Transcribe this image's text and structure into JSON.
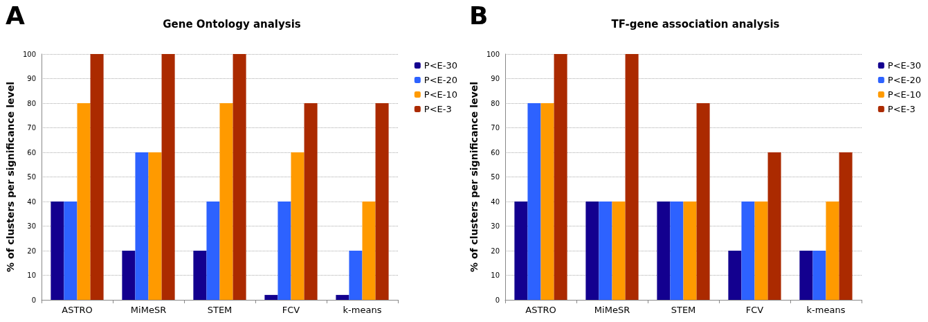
{
  "chart_data": [
    {
      "type": "bar",
      "title": "Gene Ontology analysis",
      "annotations": [
        "A"
      ],
      "ylabel": "% of clusters per significance level",
      "categories": [
        "ASTRO",
        "MiMeSR",
        "STEM",
        "FCV",
        "k-means"
      ],
      "series": [
        {
          "name": "P<E-30",
          "color": "#13008f",
          "values": [
            40,
            20,
            20,
            2,
            2
          ]
        },
        {
          "name": "P<E-20",
          "color": "#2d62ff",
          "values": [
            40,
            60,
            40,
            40,
            20
          ]
        },
        {
          "name": "P<E-10",
          "color": "#ff9a00",
          "values": [
            80,
            60,
            80,
            60,
            40
          ]
        },
        {
          "name": "P<E-3",
          "color": "#ab2a00",
          "values": [
            100,
            100,
            100,
            80,
            80
          ]
        }
      ],
      "ylim": [
        0,
        100
      ],
      "yticks": [
        0,
        10,
        20,
        30,
        40,
        50,
        60,
        70,
        80,
        90,
        100
      ],
      "grid": "y",
      "legend": "top right"
    },
    {
      "type": "bar",
      "title": "TF-gene association analysis",
      "annotations": [
        "B"
      ],
      "ylabel": "% of clusters per significance level",
      "categories": [
        "ASTRO",
        "MiMeSR",
        "STEM",
        "FCV",
        "k-means"
      ],
      "series": [
        {
          "name": "P<E-30",
          "color": "#13008f",
          "values": [
            40,
            40,
            40,
            20,
            20
          ]
        },
        {
          "name": "P<E-20",
          "color": "#2d62ff",
          "values": [
            80,
            40,
            40,
            40,
            20
          ]
        },
        {
          "name": "P<E-10",
          "color": "#ff9a00",
          "values": [
            80,
            40,
            40,
            40,
            40
          ]
        },
        {
          "name": "P<E-3",
          "color": "#ab2a00",
          "values": [
            100,
            100,
            80,
            60,
            60
          ]
        }
      ],
      "ylim": [
        0,
        100
      ],
      "yticks": [
        0,
        10,
        20,
        30,
        40,
        50,
        60,
        70,
        80,
        90,
        100
      ],
      "grid": "y",
      "legend": "top right"
    }
  ]
}
